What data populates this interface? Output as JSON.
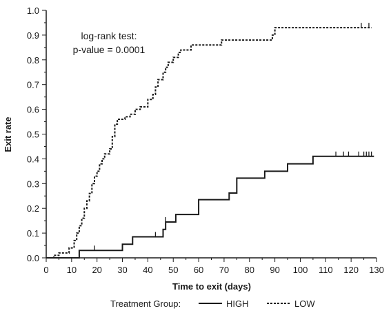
{
  "chart_data": {
    "type": "line",
    "step": true,
    "xlabel": "Time to exit (days)",
    "ylabel": "Exit rate",
    "xlim": [
      0,
      130
    ],
    "ylim": [
      0,
      1.0
    ],
    "x_ticks": [
      0,
      10,
      20,
      30,
      40,
      50,
      60,
      70,
      80,
      90,
      100,
      110,
      120,
      130
    ],
    "y_ticks": [
      0.0,
      0.1,
      0.2,
      0.3,
      0.4,
      0.5,
      0.6,
      0.7,
      0.8,
      0.9,
      1.0
    ],
    "y_tick_labels": [
      "0.0",
      "0.1",
      "0.2",
      "0.3",
      "0.4",
      "0.5",
      "0.6",
      "0.7",
      "0.8",
      "0.9",
      "1.0"
    ],
    "grid": false,
    "annotations": [
      "log-rank test:",
      "p-value = 0.0001"
    ],
    "legend": {
      "title": "Treatment Group:",
      "placement": "bottom"
    },
    "series": [
      {
        "name": "HIGH",
        "line_style": "solid",
        "color": "#1a1a1a",
        "points": [
          [
            0,
            0.0
          ],
          [
            13,
            0.0
          ],
          [
            13,
            0.03
          ],
          [
            30,
            0.03
          ],
          [
            30,
            0.055
          ],
          [
            34,
            0.055
          ],
          [
            34,
            0.085
          ],
          [
            46,
            0.085
          ],
          [
            46,
            0.115
          ],
          [
            47,
            0.115
          ],
          [
            47,
            0.145
          ],
          [
            51,
            0.145
          ],
          [
            51,
            0.175
          ],
          [
            60,
            0.175
          ],
          [
            60,
            0.235
          ],
          [
            72,
            0.235
          ],
          [
            72,
            0.262
          ],
          [
            75,
            0.262
          ],
          [
            75,
            0.322
          ],
          [
            86,
            0.322
          ],
          [
            86,
            0.35
          ],
          [
            95,
            0.35
          ],
          [
            95,
            0.38
          ],
          [
            105,
            0.38
          ],
          [
            105,
            0.41
          ],
          [
            129,
            0.41
          ]
        ],
        "censor_x": [
          19,
          43,
          47,
          114,
          117,
          119,
          123,
          125,
          126,
          127,
          128
        ]
      },
      {
        "name": "LOW",
        "line_style": "dashed",
        "color": "#1a1a1a",
        "points": [
          [
            0,
            0.0
          ],
          [
            3,
            0.0
          ],
          [
            3,
            0.01
          ],
          [
            5,
            0.01
          ],
          [
            5,
            0.02
          ],
          [
            9,
            0.02
          ],
          [
            9,
            0.04
          ],
          [
            11,
            0.04
          ],
          [
            11,
            0.07
          ],
          [
            12,
            0.07
          ],
          [
            12,
            0.1
          ],
          [
            13,
            0.1
          ],
          [
            13,
            0.13
          ],
          [
            14,
            0.13
          ],
          [
            14,
            0.16
          ],
          [
            15,
            0.16
          ],
          [
            15,
            0.2
          ],
          [
            16,
            0.2
          ],
          [
            16,
            0.23
          ],
          [
            17,
            0.23
          ],
          [
            17,
            0.26
          ],
          [
            18,
            0.26
          ],
          [
            18,
            0.3
          ],
          [
            19,
            0.3
          ],
          [
            19,
            0.33
          ],
          [
            20,
            0.33
          ],
          [
            20,
            0.35
          ],
          [
            21,
            0.35
          ],
          [
            21,
            0.38
          ],
          [
            22,
            0.38
          ],
          [
            22,
            0.4
          ],
          [
            23,
            0.4
          ],
          [
            23,
            0.42
          ],
          [
            25,
            0.42
          ],
          [
            25,
            0.44
          ],
          [
            26,
            0.44
          ],
          [
            26,
            0.49
          ],
          [
            27,
            0.49
          ],
          [
            27,
            0.54
          ],
          [
            28,
            0.54
          ],
          [
            28,
            0.56
          ],
          [
            31,
            0.56
          ],
          [
            31,
            0.57
          ],
          [
            33,
            0.57
          ],
          [
            33,
            0.58
          ],
          [
            35,
            0.58
          ],
          [
            35,
            0.6
          ],
          [
            37,
            0.6
          ],
          [
            37,
            0.61
          ],
          [
            40,
            0.61
          ],
          [
            40,
            0.64
          ],
          [
            42,
            0.64
          ],
          [
            42,
            0.66
          ],
          [
            43,
            0.66
          ],
          [
            43,
            0.69
          ],
          [
            44,
            0.69
          ],
          [
            44,
            0.72
          ],
          [
            46,
            0.72
          ],
          [
            46,
            0.75
          ],
          [
            47,
            0.75
          ],
          [
            47,
            0.77
          ],
          [
            48,
            0.77
          ],
          [
            48,
            0.79
          ],
          [
            50,
            0.79
          ],
          [
            50,
            0.81
          ],
          [
            52,
            0.81
          ],
          [
            52,
            0.83
          ],
          [
            53,
            0.83
          ],
          [
            53,
            0.84
          ],
          [
            57,
            0.84
          ],
          [
            57,
            0.86
          ],
          [
            69,
            0.86
          ],
          [
            69,
            0.88
          ],
          [
            89,
            0.88
          ],
          [
            89,
            0.9
          ],
          [
            90,
            0.9
          ],
          [
            90,
            0.93
          ],
          [
            128,
            0.93
          ]
        ],
        "censor_x": [
          124,
          127
        ]
      }
    ]
  }
}
